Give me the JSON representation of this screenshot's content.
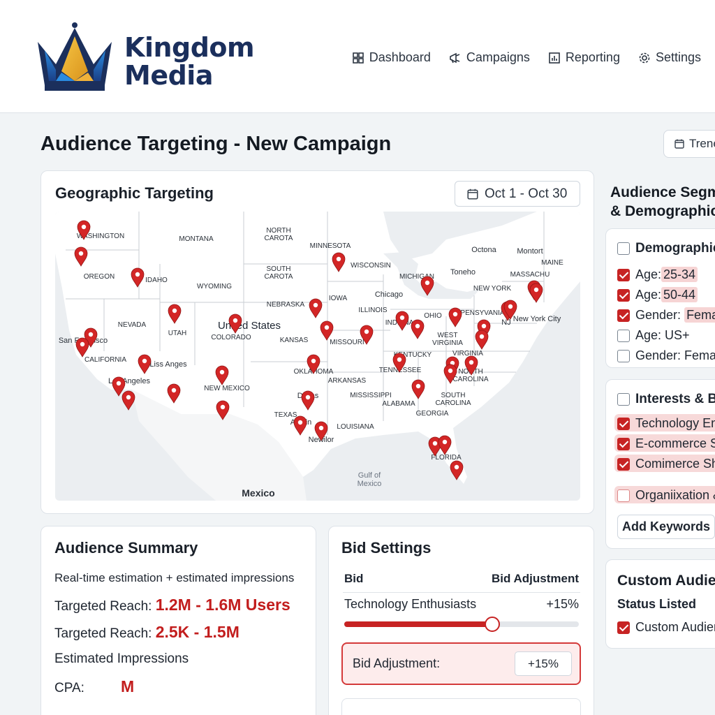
{
  "brand": {
    "line1": "Kingdom",
    "line2": "Media"
  },
  "nav": [
    {
      "label": "Dashboard",
      "icon": "dashboard-icon"
    },
    {
      "label": "Campaigns",
      "icon": "megaphone-icon"
    },
    {
      "label": "Reporting",
      "icon": "chart-icon"
    },
    {
      "label": "Settings",
      "icon": "gear-icon"
    }
  ],
  "page": {
    "title": "Audience Targeting - New Campaign",
    "trend_label": "Trene"
  },
  "geo": {
    "title": "Geographic Targeting",
    "date_range": "Oct 1 - Oct 30",
    "country_label": "United States",
    "state_labels": [
      "WASHINGTON",
      "MONTANA",
      "NORTH CAROTA",
      "MINNESOTA",
      "OREGON",
      "IDAHO",
      "WYOMING",
      "SOUTH CAROTA",
      "WISCONSIN",
      "MICHIGAN",
      "NEBRASKA",
      "IOWA",
      "ILLINOIS",
      "INDIANA",
      "OHIO",
      "NEVADA",
      "UTAH",
      "COLORADO",
      "KANSAS",
      "MISSOURI",
      "WEST VIRGINIA",
      "VIRGINIA",
      "CALIFORNIA",
      "OKLAHOMA",
      "TENNESSEE",
      "NORTH CAROLINA",
      "ARKANSAS",
      "NEW MEXICO",
      "MISSISSIPPI",
      "ALABAMA",
      "SOUTH CAROLINA",
      "GEORGIA",
      "TEXAS",
      "LOUISIANA",
      "FLORIDA",
      "MAINE",
      "PENSYVANIA",
      "NEW YORK",
      "MASSACHU",
      "KENTUCKY"
    ],
    "city_labels": [
      "Chicago",
      "Toneho",
      "Octona",
      "Montort",
      "New York City",
      "San Francisco",
      "Liss Anges",
      "Los Angeles",
      "Dallas",
      "Austin",
      "Newilor",
      "NJ"
    ],
    "other_labels": [
      "Mexico",
      "Gulf of Mexico"
    ],
    "pin_color": "#d32626"
  },
  "summary": {
    "title": "Audience Summary",
    "subtitle": "Real-time estimation + estimated impressions",
    "reach1_label": "Targeted Reach:",
    "reach1_value": "1.2M - 1.6M Users",
    "reach2_label": "Targeted Reach:",
    "reach2_value": "2.5K - 1.5M",
    "impressions_label": "Estimated Impressions",
    "cpa_label": "CPA:",
    "cpa_value": "M"
  },
  "bid": {
    "title": "Bid Settings",
    "col1": "Bid",
    "col2": "Bid Adjustment",
    "row_label": "Technology Enthusiasts",
    "row_value": "+15%",
    "slider_fraction": 0.63,
    "adj_label": "Bid Adjustment:",
    "adj_value": "+15%"
  },
  "segments": {
    "title_line1": "Audience Segm",
    "title_line2": "& Demographic",
    "demographics": {
      "header": "Demographic",
      "items": [
        {
          "prefix": "Age:",
          "value": "25-34",
          "checked": true
        },
        {
          "prefix": "Age:",
          "value": "50-44",
          "checked": true
        },
        {
          "prefix": "Gender:",
          "value": "Female",
          "checked": true
        },
        {
          "prefix": "Age: US+",
          "value": "",
          "checked": false
        },
        {
          "prefix": "Gender: Female",
          "value": "",
          "checked": false
        }
      ]
    },
    "interests": {
      "header": "Interests & Be",
      "items": [
        {
          "label": "Technology Ent",
          "checked": true
        },
        {
          "label": "E-commerce Sh",
          "checked": true
        },
        {
          "label": "Comimerce Sho",
          "checked": true
        },
        {
          "label": "Organiixation &",
          "checked": false
        }
      ],
      "add_keywords": "Add Keywords"
    },
    "custom": {
      "title": "Custom Audien",
      "status": "Status Listed",
      "item": "Custom Audienc"
    }
  }
}
